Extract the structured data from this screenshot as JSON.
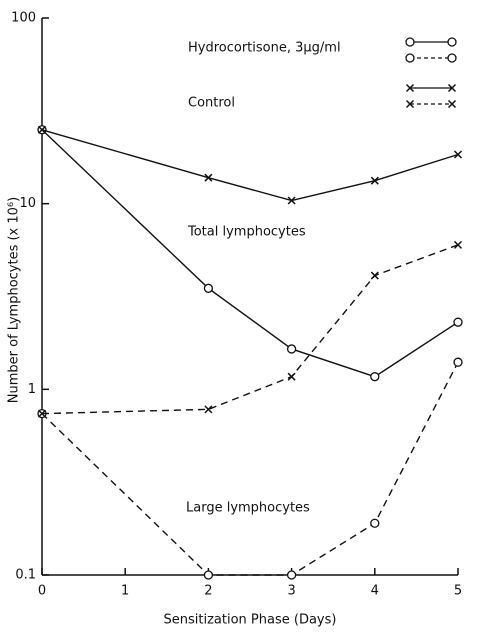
{
  "chart_data": {
    "type": "line",
    "xlabel": "Sensitization Phase (Days)",
    "ylabel": "Number of Lymphocytes (x 10⁶)",
    "x": [
      0,
      2,
      3,
      4,
      5
    ],
    "xlim": [
      0,
      5
    ],
    "xticks": [
      0,
      1,
      2,
      3,
      4,
      5
    ],
    "ylim": [
      0.1,
      100
    ],
    "yticks": [
      0.1,
      1,
      10,
      100
    ],
    "log_y": true,
    "color": "#111111",
    "annotations": [
      "Hydrocortisone, 3μg/ml",
      "Control",
      "Total lymphocytes",
      "Large lymphocytes"
    ],
    "series": [
      {
        "marker": "circle",
        "dashed": false,
        "values": [
          25,
          3.5,
          1.65,
          1.17,
          2.3
        ]
      },
      {
        "marker": "circle",
        "dashed": true,
        "values": [
          0.74,
          0.1,
          0.1,
          0.19,
          1.4
        ]
      },
      {
        "marker": "cross",
        "dashed": false,
        "values": [
          25,
          13.8,
          10.4,
          13.3,
          18.4
        ]
      },
      {
        "marker": "cross",
        "dashed": true,
        "values": [
          0.74,
          0.78,
          1.17,
          4.1,
          6.0
        ]
      }
    ]
  }
}
